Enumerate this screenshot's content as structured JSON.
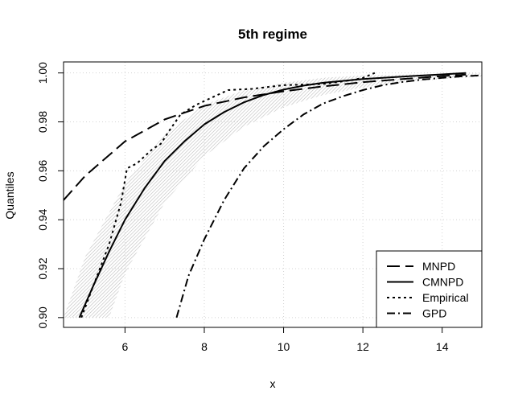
{
  "chart_data": {
    "type": "line",
    "title": "5th regime",
    "xlabel": "x",
    "ylabel": "Quantiles",
    "xlim": [
      4.45,
      15
    ],
    "ylim": [
      0.896,
      1.0045
    ],
    "xticks": [
      6,
      8,
      10,
      12,
      14
    ],
    "yticks": [
      0.9,
      0.92,
      0.94,
      0.96,
      0.98,
      1.0
    ],
    "xtick_labels": [
      "6",
      "8",
      "10",
      "12",
      "14"
    ],
    "ytick_labels": [
      "0.90",
      "0.92",
      "0.94",
      "0.96",
      "0.98",
      "1.00"
    ],
    "grid": true,
    "legend_position": "bottom-right",
    "band": {
      "color": "#bdbdbd",
      "upper": [
        [
          4.45,
          0.9
        ],
        [
          5.0,
          0.925
        ],
        [
          6.0,
          0.955
        ],
        [
          7.0,
          0.975
        ],
        [
          8.0,
          0.987
        ],
        [
          9.0,
          0.993
        ],
        [
          10.0,
          0.996
        ],
        [
          11.0,
          0.998
        ],
        [
          12.0,
          0.999
        ],
        [
          13.0,
          0.9993
        ],
        [
          14.0,
          0.9996
        ],
        [
          15.0,
          0.9998
        ]
      ],
      "lower": [
        [
          5.6,
          0.9
        ],
        [
          6.0,
          0.918
        ],
        [
          7.0,
          0.947
        ],
        [
          8.0,
          0.966
        ],
        [
          9.0,
          0.978
        ],
        [
          10.0,
          0.986
        ],
        [
          11.0,
          0.991
        ],
        [
          12.0,
          0.994
        ],
        [
          13.0,
          0.996
        ],
        [
          14.0,
          0.9975
        ],
        [
          15.0,
          0.9985
        ]
      ]
    },
    "series": [
      {
        "name": "MNPD",
        "dash": "16,7",
        "points": [
          [
            4.45,
            0.948
          ],
          [
            5.0,
            0.958
          ],
          [
            6.0,
            0.972
          ],
          [
            7.0,
            0.981
          ],
          [
            8.0,
            0.9865
          ],
          [
            9.0,
            0.99
          ],
          [
            10.0,
            0.9925
          ],
          [
            11.0,
            0.9945
          ],
          [
            12.0,
            0.9962
          ],
          [
            13.0,
            0.9975
          ],
          [
            14.0,
            0.9987
          ],
          [
            14.6,
            0.9993
          ]
        ]
      },
      {
        "name": "CMNPD",
        "dash": "",
        "points": [
          [
            4.85,
            0.9
          ],
          [
            5.2,
            0.913
          ],
          [
            5.6,
            0.927
          ],
          [
            6.0,
            0.94
          ],
          [
            6.5,
            0.953
          ],
          [
            7.0,
            0.964
          ],
          [
            7.5,
            0.972
          ],
          [
            8.0,
            0.979
          ],
          [
            8.5,
            0.984
          ],
          [
            9.0,
            0.988
          ],
          [
            9.5,
            0.991
          ],
          [
            10.0,
            0.9932
          ],
          [
            10.5,
            0.9948
          ],
          [
            11.0,
            0.996
          ],
          [
            12.0,
            0.9975
          ],
          [
            13.0,
            0.9985
          ],
          [
            14.0,
            0.9994
          ],
          [
            14.6,
            1.0
          ]
        ]
      },
      {
        "name": "Empirical",
        "dash": "3,4",
        "points": [
          [
            4.9,
            0.9
          ],
          [
            5.2,
            0.913
          ],
          [
            5.6,
            0.93
          ],
          [
            5.9,
            0.947
          ],
          [
            6.05,
            0.961
          ],
          [
            6.3,
            0.963
          ],
          [
            6.5,
            0.966
          ],
          [
            6.7,
            0.969
          ],
          [
            6.9,
            0.971
          ],
          [
            7.1,
            0.976
          ],
          [
            7.4,
            0.983
          ],
          [
            7.8,
            0.987
          ],
          [
            8.2,
            0.99
          ],
          [
            8.6,
            0.993
          ],
          [
            9.2,
            0.9935
          ],
          [
            10.0,
            0.995
          ],
          [
            11.0,
            0.9955
          ],
          [
            11.7,
            0.997
          ],
          [
            12.0,
            0.998
          ],
          [
            12.3,
            1.0
          ]
        ]
      },
      {
        "name": "GPD",
        "dash": "10,4,2,4",
        "points": [
          [
            7.3,
            0.9
          ],
          [
            7.6,
            0.917
          ],
          [
            8.0,
            0.932
          ],
          [
            8.5,
            0.948
          ],
          [
            9.0,
            0.961
          ],
          [
            9.5,
            0.97
          ],
          [
            10.0,
            0.977
          ],
          [
            10.5,
            0.983
          ],
          [
            11.0,
            0.9875
          ],
          [
            11.5,
            0.9905
          ],
          [
            12.0,
            0.993
          ],
          [
            12.5,
            0.995
          ],
          [
            13.0,
            0.9963
          ],
          [
            13.5,
            0.9973
          ],
          [
            14.0,
            0.998
          ],
          [
            14.5,
            0.9986
          ],
          [
            15.0,
            0.999
          ]
        ]
      }
    ]
  }
}
